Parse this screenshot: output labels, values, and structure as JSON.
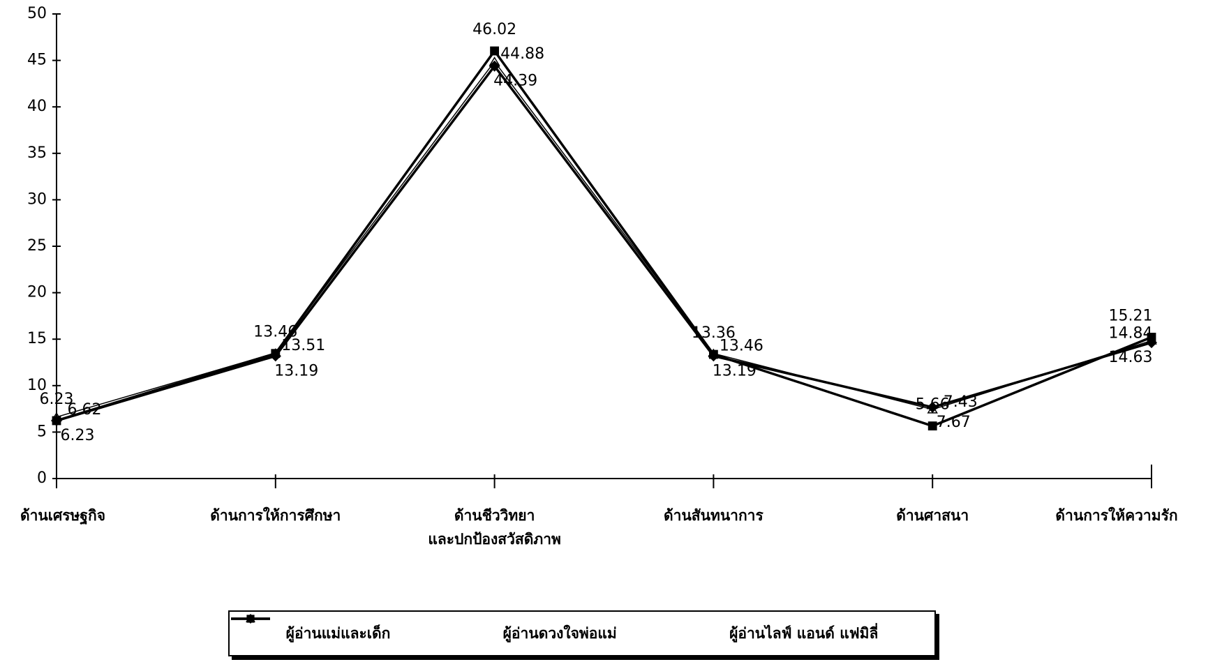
{
  "chart_data": {
    "type": "line",
    "categories": [
      "ด้านเศรษฐกิจ",
      "ด้านการให้การศึกษา",
      "ด้านชีววิทยา\nและปกป้องสวัสดิภาพ",
      "ด้านสันทนาการ",
      "ด้านศาสนา",
      "ด้านการให้ความรัก"
    ],
    "series": [
      {
        "name": "ผู้อ่านแม่และเด็ก",
        "color": "#000000",
        "marker": "diamond",
        "values": [
          6.23,
          13.19,
          44.39,
          13.19,
          7.67,
          14.63
        ]
      },
      {
        "name": "ผู้อ่านดวงใจพ่อแม่",
        "color": "#000000",
        "marker": "square",
        "values": [
          6.23,
          13.46,
          46.02,
          13.36,
          5.66,
          15.21
        ]
      },
      {
        "name": "ผู้อ่านไลฟ์ แอนด์ แฟมิลี่",
        "color": "#000000",
        "marker": "triangle",
        "values": [
          6.62,
          13.51,
          44.88,
          13.46,
          7.43,
          14.84
        ]
      }
    ],
    "ylim": [
      0,
      50
    ],
    "yticks": [
      0,
      5,
      10,
      15,
      20,
      25,
      30,
      35,
      40,
      45,
      50
    ],
    "grid": false,
    "legend": "bottom"
  }
}
